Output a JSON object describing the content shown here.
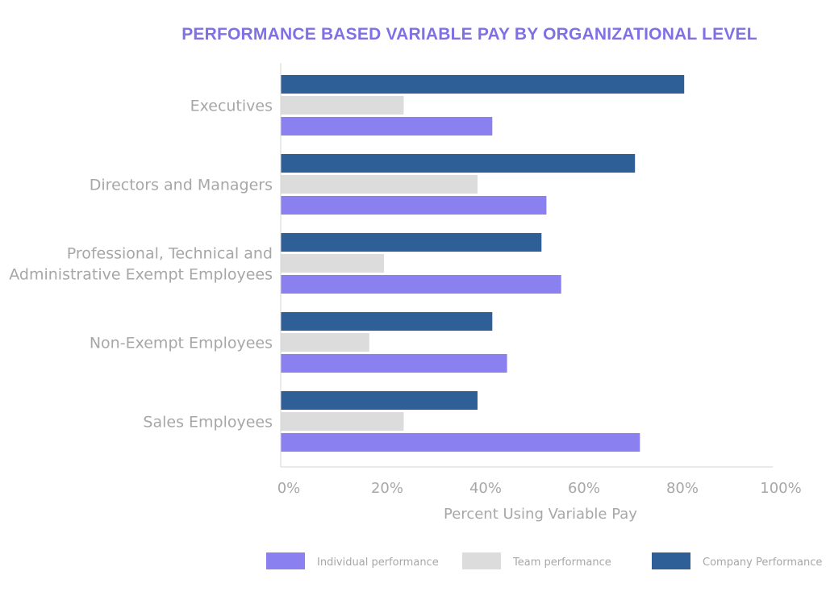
{
  "chart_data": {
    "type": "bar",
    "orientation": "horizontal",
    "title": "PERFORMANCE BASED VARIABLE PAY BY ORGANIZATIONAL LEVEL",
    "xlabel": "Percent Using Variable Pay",
    "ylabel": "",
    "xlim": [
      0,
      100
    ],
    "x_ticks": [
      "0%",
      "20%",
      "40%",
      "60%",
      "80%",
      "100%"
    ],
    "grid": false,
    "legend_position": "bottom",
    "categories": [
      [
        "Executives"
      ],
      [
        "Directors and Managers"
      ],
      [
        "Professional, Technical and",
        "Administrative Exempt Employees"
      ],
      [
        "Non-Exempt Employees"
      ],
      [
        "Sales Employees"
      ]
    ],
    "series": [
      {
        "name": "Company Performance",
        "color": "#2f5f97",
        "values": [
          82,
          72,
          53,
          43,
          40
        ]
      },
      {
        "name": "Team performance",
        "color": "#dcdcdc",
        "values": [
          25,
          40,
          21,
          18,
          25
        ]
      },
      {
        "name": "Individual performance",
        "color": "#8b80f0",
        "values": [
          43,
          54,
          57,
          46,
          73
        ]
      }
    ],
    "legend_order": [
      "Individual performance",
      "Team performance",
      "Company Performance"
    ]
  }
}
